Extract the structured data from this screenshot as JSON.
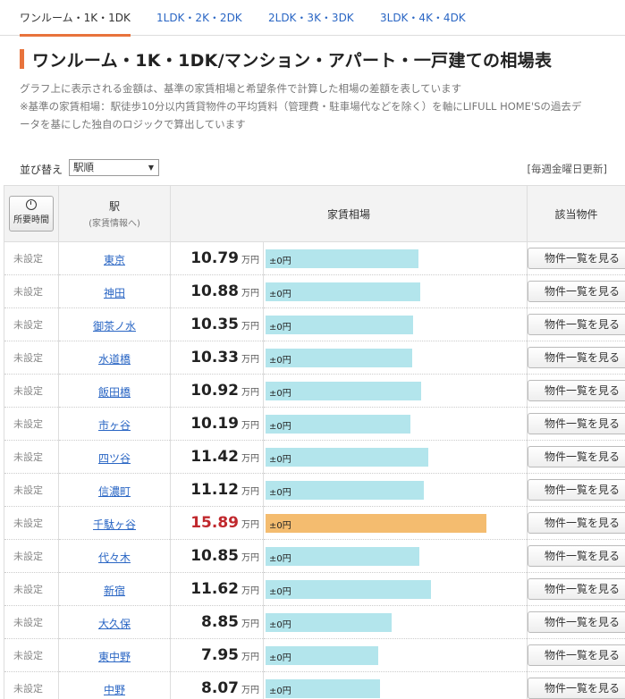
{
  "tabs": [
    {
      "label": "ワンルーム・1K・1DK",
      "active": true
    },
    {
      "label": "1LDK・2K・2DK",
      "active": false
    },
    {
      "label": "2LDK・3K・3DK",
      "active": false
    },
    {
      "label": "3LDK・4K・4DK",
      "active": false
    }
  ],
  "title": "ワンルーム・1K・1DK/マンション・アパート・一戸建ての相場表",
  "description": [
    "グラフ上に表示される金額は、基準の家賃相場と希望条件で計算した相場の差額を表しています",
    "※基準の家賃相場：駅徒歩10分以内賃貸物件の平均賃料（管理費・駐車場代などを除く）を軸にLIFULL HOME'Sの過去デ",
    "ータを基にした独自のロジックで算出しています"
  ],
  "sort": {
    "label": "並び替え",
    "value": "駅順"
  },
  "updated": "[毎週金曜日更新]",
  "columns": {
    "time_button": "所要時間",
    "station": "駅",
    "station_sub": "(家賃情報へ)",
    "rent": "家賃相場",
    "properties": "該当物件"
  },
  "unit": "万円",
  "row_button": "物件一覧を見る",
  "colors": {
    "accent": "#e8733c",
    "bar": "#b3e5ec",
    "bar_high": "#f4bc6f",
    "price_high": "#c0282d"
  },
  "rows": [
    {
      "time": "未設定",
      "station": "東京",
      "price": "10.79",
      "diff": "±0円",
      "level": 0.694
    },
    {
      "time": "未設定",
      "station": "神田",
      "price": "10.88",
      "diff": "±0円",
      "level": 0.7
    },
    {
      "time": "未設定",
      "station": "御茶ノ水",
      "price": "10.35",
      "diff": "±0円",
      "level": 0.666
    },
    {
      "time": "未設定",
      "station": "水道橋",
      "price": "10.33",
      "diff": "±0円",
      "level": 0.665
    },
    {
      "time": "未設定",
      "station": "飯田橋",
      "price": "10.92",
      "diff": "±0円",
      "level": 0.703
    },
    {
      "time": "未設定",
      "station": "市ヶ谷",
      "price": "10.19",
      "diff": "±0円",
      "level": 0.656
    },
    {
      "time": "未設定",
      "station": "四ツ谷",
      "price": "11.42",
      "diff": "±0円",
      "level": 0.735
    },
    {
      "time": "未設定",
      "station": "信濃町",
      "price": "11.12",
      "diff": "±0円",
      "level": 0.716
    },
    {
      "time": "未設定",
      "station": "千駄ヶ谷",
      "price": "15.89",
      "diff": "±0円",
      "level": 1.0,
      "high": true
    },
    {
      "time": "未設定",
      "station": "代々木",
      "price": "10.85",
      "diff": "±0円",
      "level": 0.698
    },
    {
      "time": "未設定",
      "station": "新宿",
      "price": "11.62",
      "diff": "±0円",
      "level": 0.748
    },
    {
      "time": "未設定",
      "station": "大久保",
      "price": "8.85",
      "diff": "±0円",
      "level": 0.57
    },
    {
      "time": "未設定",
      "station": "東中野",
      "price": "7.95",
      "diff": "±0円",
      "level": 0.512
    },
    {
      "time": "未設定",
      "station": "中野",
      "price": "8.07",
      "diff": "±0円",
      "level": 0.519
    }
  ]
}
